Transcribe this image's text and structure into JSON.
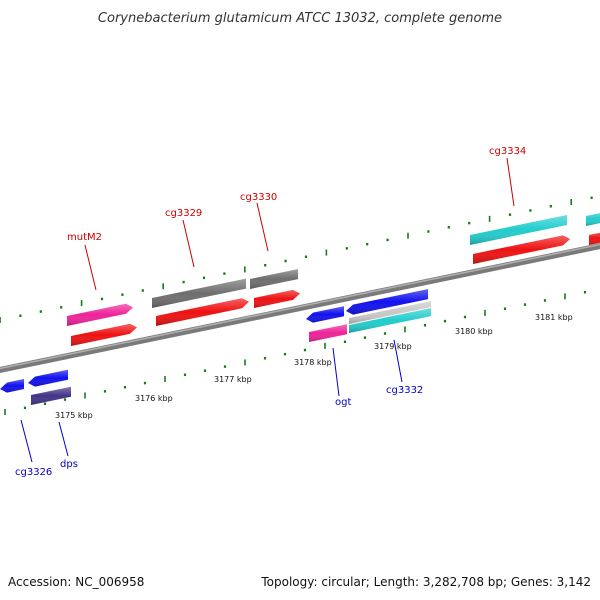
{
  "title": "Corynebacterium glutamicum ATCC 13032, complete genome",
  "footer": {
    "accession": "Accession: NC_006958",
    "topology": "Topology: circular; Length: 3,282,708 bp; Genes: 3,142"
  },
  "scale_labels": [
    "3175 kbp",
    "3176 kbp",
    "3177 kbp",
    "3178 kbp",
    "3179 kbp",
    "3180 kbp",
    "3181 kbp"
  ],
  "top_labels": [
    "mutM2",
    "cg3329",
    "cg3330",
    "cg3334"
  ],
  "bottom_labels": [
    "cg3326",
    "dps",
    "ogt",
    "cg3332"
  ],
  "colors": {
    "backbone": "#8a8a8a",
    "tick": "#1a7a1a",
    "red": "#ee1111",
    "gray": "#6e6e6e",
    "pink": "#ee2299",
    "cyan": "#22cccc",
    "blue": "#1111ee",
    "navy": "#443388",
    "lightgray": "#c8c8c8",
    "label_top": "#cc0000",
    "label_bottom": "#0000cc"
  }
}
